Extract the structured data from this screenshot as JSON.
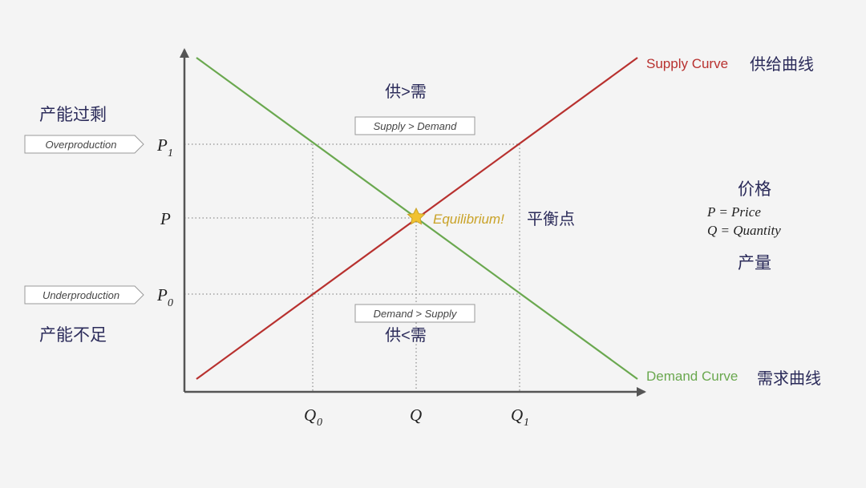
{
  "colors": {
    "background": "#f4f4f4",
    "supply": "#b8312f",
    "demand": "#6aa84f",
    "axis": "#555555",
    "guide": "#777777",
    "label": "#2b2b5a",
    "equilibrium": "#c9a227",
    "tag_border": "#999999"
  },
  "curves": {
    "supply_label": "Supply Curve",
    "supply_label_cn": "供给曲线",
    "demand_label": "Demand Curve",
    "demand_label_cn": "需求曲线"
  },
  "axis_labels": {
    "p1_main": "P",
    "p1_sub": "1",
    "p": "P",
    "p0_main": "P",
    "p0_sub": "0",
    "q0_main": "Q",
    "q0_sub": "0",
    "q": "Q",
    "q1_main": "Q",
    "q1_sub": "1"
  },
  "regions": {
    "surplus_cn": "供>需",
    "surplus_tag": "Supply > Demand",
    "shortage_cn": "供<需",
    "shortage_tag": "Demand > Supply"
  },
  "side_labels": {
    "overproduction_cn": "产能过剩",
    "overproduction_tag": "Overproduction",
    "underproduction_cn": "产能不足",
    "underproduction_tag": "Underproduction"
  },
  "equilibrium": {
    "label": "Equilibrium!",
    "label_cn": "平衡点"
  },
  "legend": {
    "price_cn": "价格",
    "price_def": "P = Price",
    "quantity_def": "Q = Quantity",
    "quantity_cn": "产量"
  }
}
